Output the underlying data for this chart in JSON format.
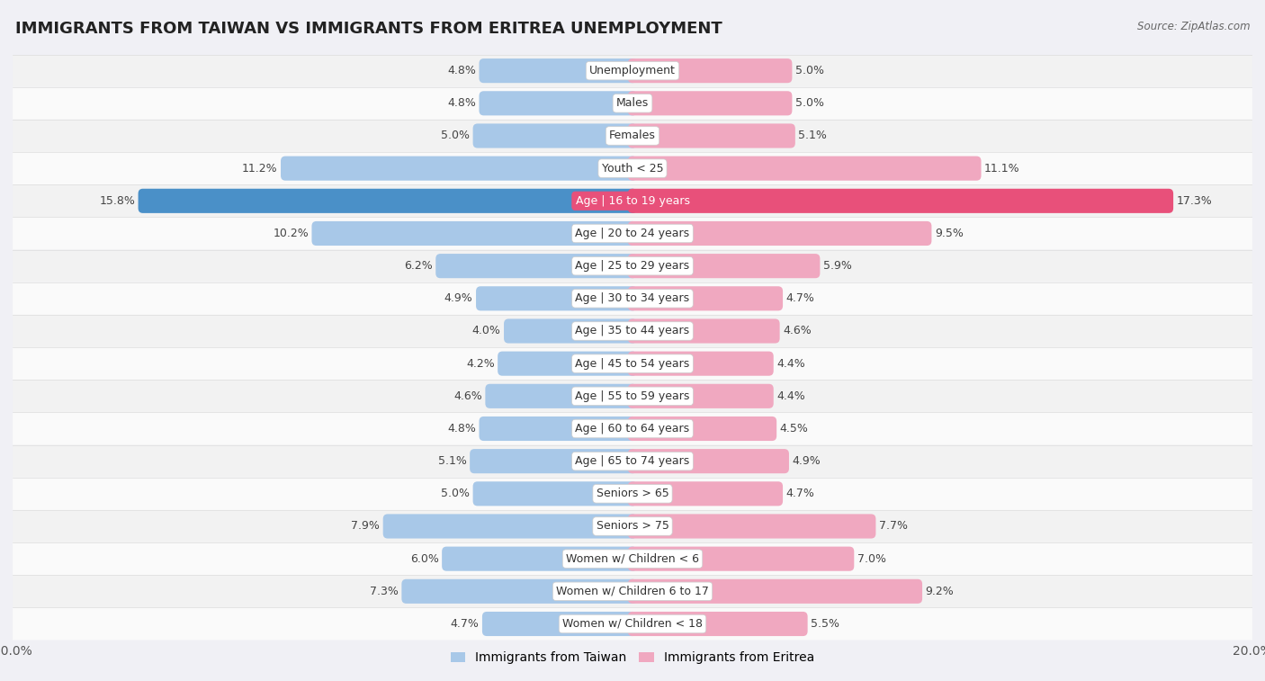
{
  "title": "IMMIGRANTS FROM TAIWAN VS IMMIGRANTS FROM ERITREA UNEMPLOYMENT",
  "source": "Source: ZipAtlas.com",
  "categories": [
    "Unemployment",
    "Males",
    "Females",
    "Youth < 25",
    "Age | 16 to 19 years",
    "Age | 20 to 24 years",
    "Age | 25 to 29 years",
    "Age | 30 to 34 years",
    "Age | 35 to 44 years",
    "Age | 45 to 54 years",
    "Age | 55 to 59 years",
    "Age | 60 to 64 years",
    "Age | 65 to 74 years",
    "Seniors > 65",
    "Seniors > 75",
    "Women w/ Children < 6",
    "Women w/ Children 6 to 17",
    "Women w/ Children < 18"
  ],
  "taiwan_values": [
    4.8,
    4.8,
    5.0,
    11.2,
    15.8,
    10.2,
    6.2,
    4.9,
    4.0,
    4.2,
    4.6,
    4.8,
    5.1,
    5.0,
    7.9,
    6.0,
    7.3,
    4.7
  ],
  "eritrea_values": [
    5.0,
    5.0,
    5.1,
    11.1,
    17.3,
    9.5,
    5.9,
    4.7,
    4.6,
    4.4,
    4.4,
    4.5,
    4.9,
    4.7,
    7.7,
    7.0,
    9.2,
    5.5
  ],
  "taiwan_color": "#a8c8e8",
  "eritrea_color": "#f0a8c0",
  "taiwan_highlight_color": "#4a90c8",
  "eritrea_highlight_color": "#e8507a",
  "highlight_row": 4,
  "axis_max": 20.0,
  "row_color_even": "#f2f2f2",
  "row_color_odd": "#fafafa",
  "background_color": "#f0f0f5",
  "label_fontsize": 9,
  "value_fontsize": 9,
  "title_fontsize": 13,
  "legend_taiwan": "Immigrants from Taiwan",
  "legend_eritrea": "Immigrants from Eritrea"
}
